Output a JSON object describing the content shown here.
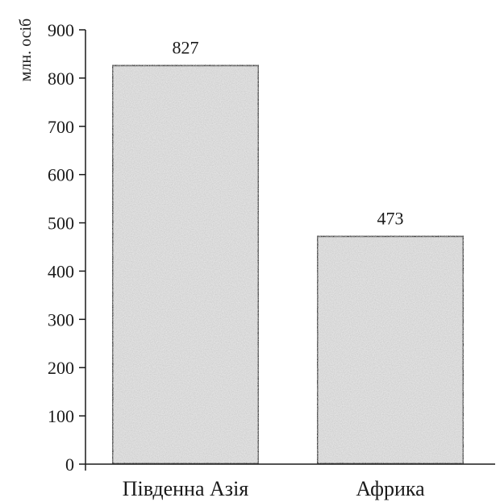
{
  "chart_data": {
    "type": "bar",
    "ylabel": "млн. осіб",
    "xlabel": "",
    "categories": [
      "Південна Азія",
      "Африка"
    ],
    "values": [
      827,
      473
    ],
    "data_labels": [
      "827",
      "473"
    ],
    "ylim": [
      0,
      900
    ],
    "yticks": [
      0,
      100,
      200,
      300,
      400,
      500,
      600,
      700,
      800,
      900
    ],
    "grid": false,
    "legend": "none",
    "colors": {
      "bar_fill": "#e3e3e3",
      "bar_stroke": "#1a1a1a",
      "axis": "#1a1a1a"
    }
  }
}
